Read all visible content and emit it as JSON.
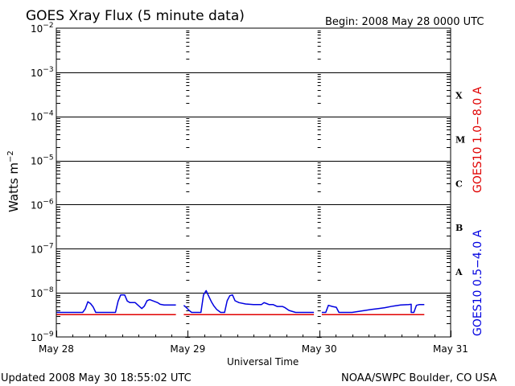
{
  "chart_data": {
    "type": "line",
    "title": "GOES Xray Flux (5 minute data)",
    "begin_label": "Begin:  2008 May 28 0000 UTC",
    "xlabel": "Universal Time",
    "ylabel_base": "Watts m",
    "ylabel_exp": "−2",
    "y_scale": "log",
    "ylim": [
      1e-09,
      0.01
    ],
    "y_ticks": [
      {
        "value": 0.01,
        "exp": "−2"
      },
      {
        "value": 0.001,
        "exp": "−3"
      },
      {
        "value": 0.0001,
        "exp": "−4"
      },
      {
        "value": 1e-05,
        "exp": "−5"
      },
      {
        "value": 1e-06,
        "exp": "−6"
      },
      {
        "value": 1e-07,
        "exp": "−7"
      },
      {
        "value": 1e-08,
        "exp": "−8"
      },
      {
        "value": 1e-09,
        "exp": "−9"
      }
    ],
    "xlim_days": [
      0,
      3
    ],
    "x_ticks": [
      {
        "day": 0,
        "label": "May 28"
      },
      {
        "day": 1,
        "label": "May 29"
      },
      {
        "day": 2,
        "label": "May 30"
      },
      {
        "day": 3,
        "label": "May 31"
      }
    ],
    "flare_classes": [
      {
        "label": "X",
        "value": 0.0003
      },
      {
        "label": "M",
        "value": 3e-05
      },
      {
        "label": "C",
        "value": 3e-06
      },
      {
        "label": "B",
        "value": 3e-07
      },
      {
        "label": "A",
        "value": 3e-08
      }
    ],
    "grid_lines": [
      0.001,
      0.0001,
      1e-05,
      1e-06,
      1e-07,
      1e-08
    ],
    "series": [
      {
        "name": "GOES10 1.0−8.0 A",
        "color": "#e00000",
        "segments": [
          [
            [
              0.0,
              3.2e-09
            ],
            [
              0.91,
              3.2e-09
            ]
          ],
          [
            [
              0.97,
              3.2e-09
            ],
            [
              1.96,
              3.2e-09
            ]
          ],
          [
            [
              2.02,
              3.2e-09
            ],
            [
              2.8,
              3.2e-09
            ]
          ]
        ]
      },
      {
        "name": "GOES10 0.5−4.0 A",
        "color": "#0000e0",
        "segments": [
          [
            [
              0.0,
              3.6e-09
            ],
            [
              0.2,
              3.6e-09
            ],
            [
              0.22,
              4.3e-09
            ],
            [
              0.24,
              6.3e-09
            ],
            [
              0.26,
              5.7e-09
            ],
            [
              0.28,
              4.8e-09
            ],
            [
              0.3,
              3.6e-09
            ],
            [
              0.45,
              3.6e-09
            ],
            [
              0.47,
              6.5e-09
            ],
            [
              0.49,
              9e-09
            ],
            [
              0.52,
              9e-09
            ],
            [
              0.54,
              6.5e-09
            ],
            [
              0.56,
              6e-09
            ],
            [
              0.6,
              6e-09
            ],
            [
              0.62,
              5.3e-09
            ],
            [
              0.65,
              4.4e-09
            ],
            [
              0.67,
              5e-09
            ],
            [
              0.69,
              6.6e-09
            ],
            [
              0.71,
              7e-09
            ],
            [
              0.74,
              6.5e-09
            ],
            [
              0.77,
              6e-09
            ],
            [
              0.79,
              5.5e-09
            ],
            [
              0.82,
              5.3e-09
            ],
            [
              0.91,
              5.3e-09
            ]
          ],
          [
            [
              0.97,
              5.2e-09
            ],
            [
              0.99,
              4.6e-09
            ],
            [
              1.01,
              4e-09
            ],
            [
              1.03,
              3.6e-09
            ],
            [
              1.1,
              3.6e-09
            ],
            [
              1.12,
              9e-09
            ],
            [
              1.14,
              1.12e-08
            ],
            [
              1.16,
              8.3e-09
            ],
            [
              1.18,
              6.3e-09
            ],
            [
              1.2,
              5e-09
            ],
            [
              1.22,
              4.2e-09
            ],
            [
              1.25,
              3.6e-09
            ],
            [
              1.28,
              3.6e-09
            ],
            [
              1.3,
              6.6e-09
            ],
            [
              1.32,
              8.6e-09
            ],
            [
              1.34,
              9e-09
            ],
            [
              1.36,
              6.6e-09
            ],
            [
              1.39,
              6e-09
            ],
            [
              1.44,
              5.6e-09
            ],
            [
              1.5,
              5.4e-09
            ],
            [
              1.56,
              5.4e-09
            ],
            [
              1.58,
              6e-09
            ],
            [
              1.6,
              5.7e-09
            ],
            [
              1.62,
              5.4e-09
            ],
            [
              1.65,
              5.4e-09
            ],
            [
              1.68,
              4.9e-09
            ],
            [
              1.7,
              4.9e-09
            ],
            [
              1.72,
              4.9e-09
            ],
            [
              1.74,
              4.6e-09
            ],
            [
              1.77,
              4e-09
            ],
            [
              1.82,
              3.6e-09
            ],
            [
              1.96,
              3.6e-09
            ]
          ],
          [
            [
              2.02,
              3.6e-09
            ],
            [
              2.05,
              3.6e-09
            ],
            [
              2.07,
              5.2e-09
            ],
            [
              2.1,
              4.9e-09
            ],
            [
              2.13,
              4.7e-09
            ],
            [
              2.15,
              3.6e-09
            ],
            [
              2.22,
              3.6e-09
            ],
            [
              2.25,
              3.6e-09
            ],
            [
              2.3,
              3.8e-09
            ],
            [
              2.35,
              4e-09
            ],
            [
              2.4,
              4.2e-09
            ],
            [
              2.45,
              4.4e-09
            ],
            [
              2.5,
              4.6e-09
            ],
            [
              2.56,
              5e-09
            ],
            [
              2.62,
              5.3e-09
            ],
            [
              2.68,
              5.4e-09
            ],
            [
              2.7,
              5.5e-09
            ],
            [
              2.7,
              3.6e-09
            ],
            [
              2.72,
              3.6e-09
            ],
            [
              2.74,
              5.2e-09
            ],
            [
              2.76,
              5.4e-09
            ],
            [
              2.8,
              5.4e-09
            ]
          ]
        ]
      }
    ]
  },
  "footer": {
    "updated": "Updated 2008 May 30 18:55:02 UTC",
    "credit": "NOAA/SWPC Boulder, CO USA"
  },
  "legend": {
    "right_top": "GOES10 1.0−8.0 A",
    "right_bottom": "GOES10 0.5−4.0 A"
  }
}
